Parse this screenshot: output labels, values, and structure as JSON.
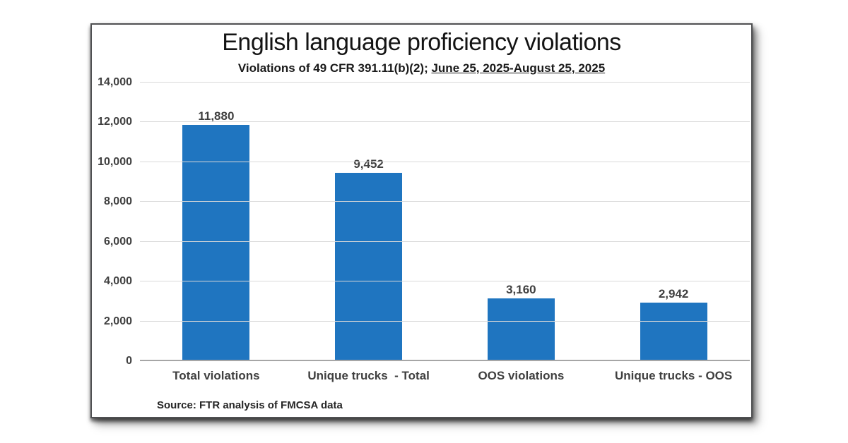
{
  "chart": {
    "title": "English language proficiency violations",
    "subtitle_prefix": "Violations of 49 CFR 391.11(b)(2); ",
    "subtitle_underlined": "June 25, 2025-August 25, 2025",
    "source": "Source: FTR analysis of FMCSA data"
  },
  "chart_data": {
    "type": "bar",
    "title": "English language proficiency violations",
    "subtitle": "Violations of 49 CFR 391.11(b)(2); June 25, 2025-August 25, 2025",
    "categories": [
      "Total violations",
      "Unique trucks  - Total",
      "OOS violations",
      "Unique trucks - OOS"
    ],
    "values": [
      11880,
      9452,
      3160,
      2942
    ],
    "value_labels": [
      "11,880",
      "9,452",
      "3,160",
      "2,942"
    ],
    "xlabel": "",
    "ylabel": "",
    "ylim": [
      0,
      14000
    ],
    "ytick_interval": 2000,
    "ytick_labels": [
      "0",
      "2,000",
      "4,000",
      "6,000",
      "8,000",
      "10,000",
      "12,000",
      "14,000"
    ],
    "grid": true,
    "legend": "none",
    "bar_color": "#1F75C0",
    "gridline_color": "#d9d9d9",
    "axis_line_color": "#a6a6a6",
    "label_color": "#404040",
    "source": "Source: FTR analysis of FMCSA data"
  }
}
